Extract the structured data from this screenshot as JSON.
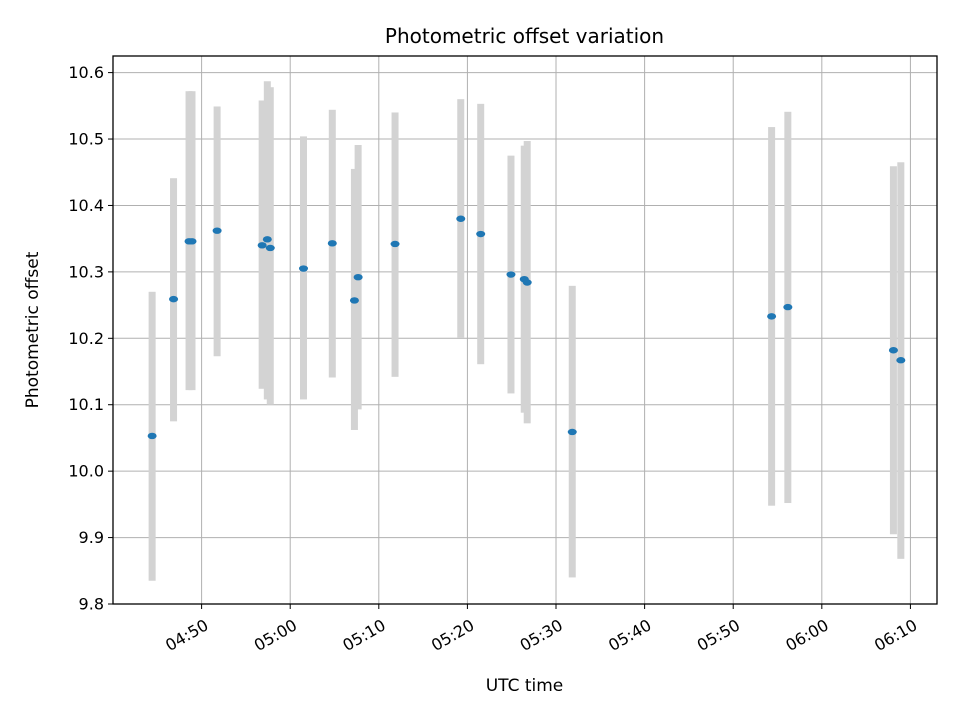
{
  "chart_data": {
    "type": "scatter",
    "title": "Photometric offset variation",
    "xlabel": "UTC time",
    "ylabel": "Photometric offset",
    "xlim": [
      "04:40:00",
      "06:13:00"
    ],
    "ylim": [
      9.8,
      10.625
    ],
    "x_ticks": [
      "04:50",
      "05:00",
      "05:10",
      "05:20",
      "05:30",
      "05:40",
      "05:50",
      "06:00",
      "06:10"
    ],
    "y_ticks": [
      "9.8",
      "9.9",
      "10.0",
      "10.1",
      "10.2",
      "10.3",
      "10.4",
      "10.5",
      "10.6"
    ],
    "grid": true,
    "colors": {
      "points": "#1f77b4",
      "errorbars": "#d3d3d3",
      "grid": "#b0b0b0"
    },
    "points": [
      {
        "time": "04:44:25",
        "y": 10.053,
        "lo": 9.835,
        "hi": 10.27
      },
      {
        "time": "04:46:50",
        "y": 10.259,
        "lo": 10.075,
        "hi": 10.441
      },
      {
        "time": "04:48:35",
        "y": 10.346,
        "lo": 10.122,
        "hi": 10.572
      },
      {
        "time": "04:48:55",
        "y": 10.346,
        "lo": 10.122,
        "hi": 10.572
      },
      {
        "time": "04:51:45",
        "y": 10.362,
        "lo": 10.173,
        "hi": 10.549
      },
      {
        "time": "04:56:50",
        "y": 10.34,
        "lo": 10.124,
        "hi": 10.558
      },
      {
        "time": "04:57:25",
        "y": 10.349,
        "lo": 10.108,
        "hi": 10.587
      },
      {
        "time": "04:57:45",
        "y": 10.336,
        "lo": 10.1,
        "hi": 10.578
      },
      {
        "time": "05:01:30",
        "y": 10.305,
        "lo": 10.108,
        "hi": 10.504
      },
      {
        "time": "05:04:45",
        "y": 10.343,
        "lo": 10.141,
        "hi": 10.544
      },
      {
        "time": "05:07:15",
        "y": 10.257,
        "lo": 10.062,
        "hi": 10.455
      },
      {
        "time": "05:07:40",
        "y": 10.292,
        "lo": 10.093,
        "hi": 10.491
      },
      {
        "time": "05:11:50",
        "y": 10.342,
        "lo": 10.142,
        "hi": 10.54
      },
      {
        "time": "05:19:15",
        "y": 10.38,
        "lo": 10.201,
        "hi": 10.56
      },
      {
        "time": "05:21:30",
        "y": 10.357,
        "lo": 10.161,
        "hi": 10.553
      },
      {
        "time": "05:24:55",
        "y": 10.296,
        "lo": 10.117,
        "hi": 10.475
      },
      {
        "time": "05:26:25",
        "y": 10.289,
        "lo": 10.088,
        "hi": 10.49
      },
      {
        "time": "05:26:45",
        "y": 10.284,
        "lo": 10.072,
        "hi": 10.497
      },
      {
        "time": "05:31:50",
        "y": 10.059,
        "lo": 9.84,
        "hi": 10.279
      },
      {
        "time": "05:54:20",
        "y": 10.233,
        "lo": 9.948,
        "hi": 10.518
      },
      {
        "time": "05:56:10",
        "y": 10.247,
        "lo": 9.952,
        "hi": 10.541
      },
      {
        "time": "06:08:05",
        "y": 10.182,
        "lo": 9.905,
        "hi": 10.459
      },
      {
        "time": "06:08:55",
        "y": 10.167,
        "lo": 9.868,
        "hi": 10.465
      }
    ]
  }
}
